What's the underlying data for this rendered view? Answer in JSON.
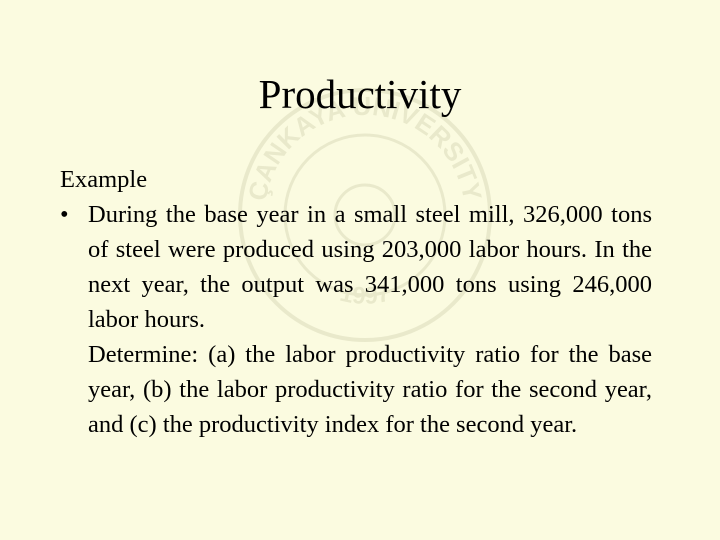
{
  "slide": {
    "title": "Productivity",
    "heading": "Example",
    "bullet_symbol": "•",
    "paragraph1": "During the base year in a small steel mill, 326,000 tons of steel were produced using 203,000 labor hours. In the next year, the output was 341,000 tons using 246,000 labor hours.",
    "paragraph2": "Determine: (a) the labor productivity ratio for the base year, (b) the labor productivity ratio for the second year, and (c) the productivity index for the second year.",
    "watermark_text": "ÇANKAYA UNIVERSITY",
    "watermark_year": "1997"
  },
  "colors": {
    "background": "#fbfbe0",
    "text": "#000000",
    "watermark": "#c8c8a0"
  }
}
